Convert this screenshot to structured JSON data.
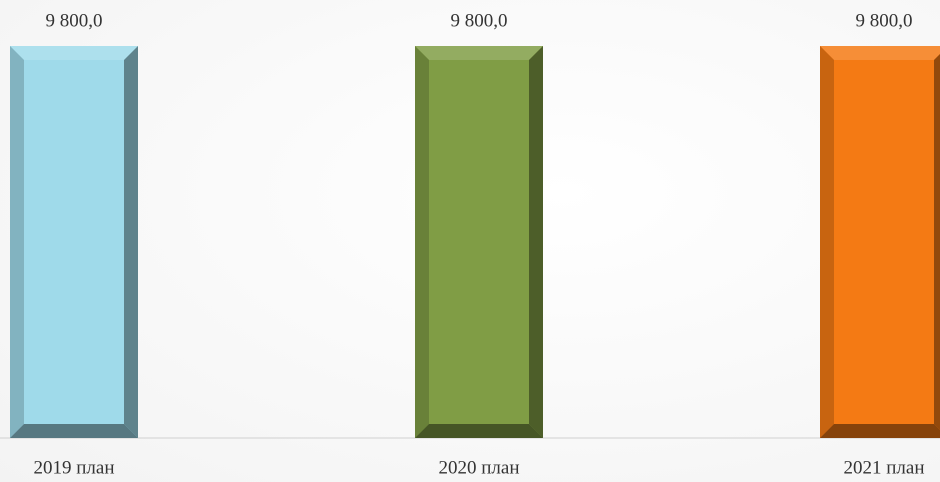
{
  "chart_data": {
    "type": "bar",
    "categories": [
      "2019 план",
      "2020 план",
      "2021 план"
    ],
    "values": [
      9800,
      9800,
      9800
    ],
    "value_labels": [
      "9 800,0",
      "9 800,0",
      "9 800,0"
    ],
    "colors": [
      "#9fdaea",
      "#809d45",
      "#f47a14"
    ]
  }
}
